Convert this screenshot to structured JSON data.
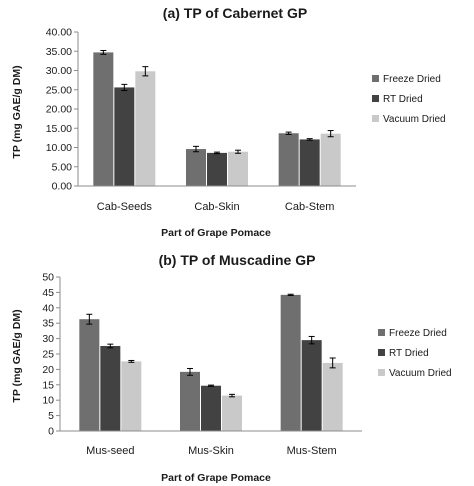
{
  "colors": {
    "Freeze Dried": "#6f6f6f",
    "RT Dried": "#424242",
    "Vacuum Dried": "#c9c9c9",
    "axis": "#8c8c8c",
    "error_bar": "#000000"
  },
  "chart_data": [
    {
      "type": "bar",
      "title": "(a) TP of Cabernet GP",
      "xlabel": "Part of Grape Pomace",
      "ylabel": "TP (mg GAE/g DM)",
      "categories": [
        "Cab-Seeds",
        "Cab-Skin",
        "Cab-Stem"
      ],
      "series": [
        {
          "name": "Freeze Dried",
          "values": [
            34.7,
            9.6,
            13.7
          ],
          "errors": [
            0.5,
            0.7,
            0.3
          ]
        },
        {
          "name": "RT Dried",
          "values": [
            25.6,
            8.6,
            12.1
          ],
          "errors": [
            0.8,
            0.2,
            0.2
          ]
        },
        {
          "name": "Vacuum Dried",
          "values": [
            29.8,
            8.9,
            13.6
          ],
          "errors": [
            1.2,
            0.4,
            0.8
          ]
        }
      ],
      "ylim": [
        0,
        40
      ],
      "yticks": [
        0,
        5,
        10,
        15,
        20,
        25,
        30,
        35,
        40
      ],
      "ytick_labels": [
        "0.00",
        "5.00",
        "10.00",
        "15.00",
        "20.00",
        "25.00",
        "30.00",
        "35.00",
        "40.00"
      ],
      "grid": false,
      "legend_position": "right"
    },
    {
      "type": "bar",
      "title": "(b) TP of Muscadine GP",
      "xlabel": "Part of Grape Pomace",
      "ylabel": "TP (mg GAE/g DM)",
      "categories": [
        "Mus-seed",
        "Mus-Skin",
        "Mus-Stem"
      ],
      "series": [
        {
          "name": "Freeze Dried",
          "values": [
            36.3,
            19.2,
            44.2
          ],
          "errors": [
            1.6,
            1.1,
            0.2
          ]
        },
        {
          "name": "RT Dried",
          "values": [
            27.6,
            14.7,
            29.5
          ],
          "errors": [
            0.6,
            0.2,
            1.2
          ]
        },
        {
          "name": "Vacuum Dried",
          "values": [
            22.6,
            11.5,
            22.1
          ],
          "errors": [
            0.3,
            0.4,
            1.6
          ]
        }
      ],
      "ylim": [
        0,
        50
      ],
      "yticks": [
        0,
        5,
        10,
        15,
        20,
        25,
        30,
        35,
        40,
        45,
        50
      ],
      "ytick_labels": [
        "0",
        "5",
        "10",
        "15",
        "20",
        "25",
        "30",
        "35",
        "40",
        "45",
        "50"
      ],
      "grid": false,
      "legend_position": "right"
    }
  ]
}
